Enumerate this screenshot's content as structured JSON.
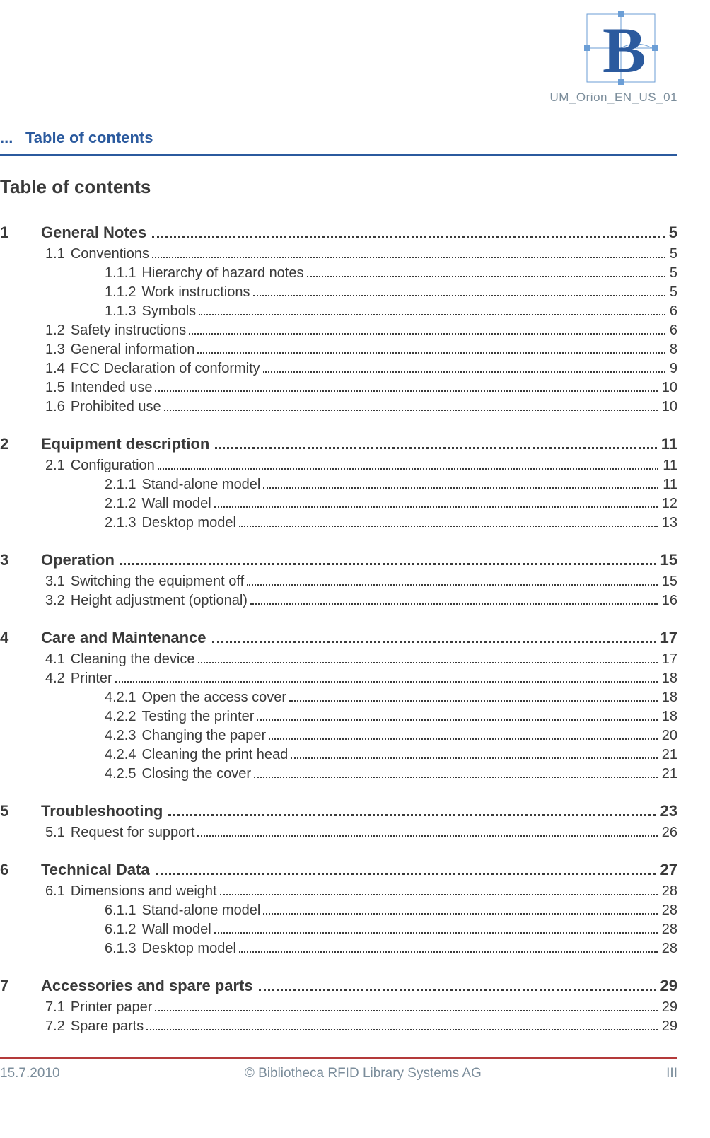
{
  "doc_id": "UM_Orion_EN_US_01",
  "header": {
    "prefix": "...",
    "label": "Table of contents"
  },
  "heading": "Table of contents",
  "colors": {
    "rule_blue": "#2b5a9e",
    "rule_red": "#b43a3a",
    "muted": "#7b8d9b",
    "text": "#3a3a3a",
    "background": "#ffffff"
  },
  "typography": {
    "font_family": "Segoe UI / Myriad Pro / Verdana",
    "heading_size_pt": 20,
    "l1_size_pt": 17,
    "l2_size_pt": 15,
    "l3_size_pt": 15,
    "footer_size_pt": 14
  },
  "toc": [
    {
      "level": 1,
      "num": "1",
      "title": "General Notes",
      "page": "5"
    },
    {
      "level": 2,
      "num": "1.1",
      "title": "Conventions",
      "page": "5"
    },
    {
      "level": 3,
      "num": "1.1.1",
      "title": "Hierarchy of hazard notes",
      "page": "5"
    },
    {
      "level": 3,
      "num": "1.1.2",
      "title": "Work instructions",
      "page": "5"
    },
    {
      "level": 3,
      "num": "1.1.3",
      "title": "Symbols",
      "page": "6"
    },
    {
      "level": 2,
      "num": "1.2",
      "title": "Safety instructions",
      "page": "6"
    },
    {
      "level": 2,
      "num": "1.3",
      "title": "General information",
      "page": "8"
    },
    {
      "level": 2,
      "num": "1.4",
      "title": "FCC Declaration of conformity",
      "page": "9"
    },
    {
      "level": 2,
      "num": "1.5",
      "title": "Intended use",
      "page": "10"
    },
    {
      "level": 2,
      "num": "1.6",
      "title": "Prohibited use",
      "page": "10"
    },
    {
      "level": 1,
      "num": "2",
      "title": "Equipment description",
      "page": "11"
    },
    {
      "level": 2,
      "num": "2.1",
      "title": "Configuration",
      "page": "11"
    },
    {
      "level": 3,
      "num": "2.1.1",
      "title": "Stand-alone model",
      "page": "11"
    },
    {
      "level": 3,
      "num": "2.1.2",
      "title": "Wall model",
      "page": "12"
    },
    {
      "level": 3,
      "num": "2.1.3",
      "title": "Desktop model",
      "page": "13"
    },
    {
      "level": 1,
      "num": "3",
      "title": "Operation",
      "page": "15"
    },
    {
      "level": 2,
      "num": "3.1",
      "title": "Switching the equipment off",
      "page": "15"
    },
    {
      "level": 2,
      "num": "3.2",
      "title": "Height adjustment (optional)",
      "page": "16"
    },
    {
      "level": 1,
      "num": "4",
      "title": "Care and Maintenance",
      "page": "17"
    },
    {
      "level": 2,
      "num": "4.1",
      "title": "Cleaning the device",
      "page": "17"
    },
    {
      "level": 2,
      "num": "4.2",
      "title": "Printer",
      "page": "18"
    },
    {
      "level": 3,
      "num": "4.2.1",
      "title": "Open the access cover",
      "page": "18"
    },
    {
      "level": 3,
      "num": "4.2.2",
      "title": "Testing the printer",
      "page": "18"
    },
    {
      "level": 3,
      "num": "4.2.3",
      "title": "Changing the paper",
      "page": "20"
    },
    {
      "level": 3,
      "num": "4.2.4",
      "title": "Cleaning the print head",
      "page": "21"
    },
    {
      "level": 3,
      "num": "4.2.5",
      "title": "Closing the cover",
      "page": "21"
    },
    {
      "level": 1,
      "num": "5",
      "title": "Troubleshooting",
      "page": "23"
    },
    {
      "level": 2,
      "num": "5.1",
      "title": "Request for support",
      "page": "26"
    },
    {
      "level": 1,
      "num": "6",
      "title": "Technical Data",
      "page": "27"
    },
    {
      "level": 2,
      "num": "6.1",
      "title": "Dimensions and weight",
      "page": "28"
    },
    {
      "level": 3,
      "num": "6.1.1",
      "title": "Stand-alone model",
      "page": "28"
    },
    {
      "level": 3,
      "num": "6.1.2",
      "title": "Wall model",
      "page": "28"
    },
    {
      "level": 3,
      "num": "6.1.3",
      "title": "Desktop model",
      "page": "28"
    },
    {
      "level": 1,
      "num": "7",
      "title": "Accessories and spare parts",
      "page": "29"
    },
    {
      "level": 2,
      "num": "7.1",
      "title": "Printer paper",
      "page": "29"
    },
    {
      "level": 2,
      "num": "7.2",
      "title": "Spare parts",
      "page": "29"
    }
  ],
  "footer": {
    "date": "15.7.2010",
    "copyright": "© Bibliotheca RFID Library Systems AG",
    "page_num": "III"
  }
}
